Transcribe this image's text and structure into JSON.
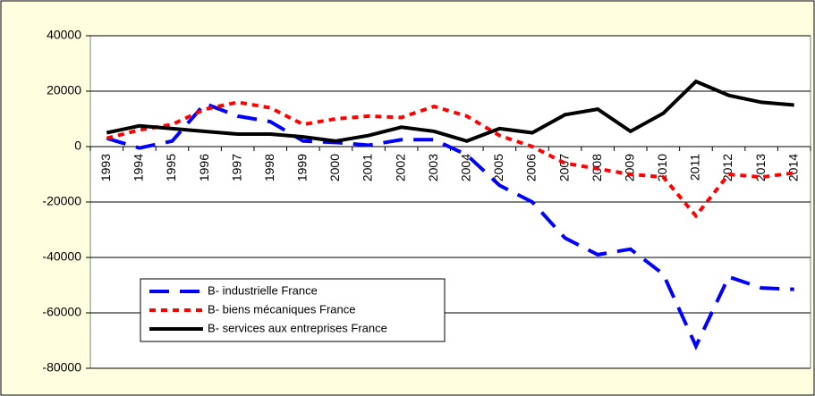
{
  "chart_data": {
    "type": "line",
    "categories": [
      "1993",
      "1994",
      "1995",
      "1996",
      "1997",
      "1998",
      "1999",
      "2000",
      "2001",
      "2002",
      "2003",
      "2004",
      "2005",
      "2006",
      "2007",
      "2008",
      "2009",
      "2010",
      "2011",
      "2012",
      "2013",
      "2014"
    ],
    "series": [
      {
        "name": "B- industrielle France",
        "color": "#0000ff",
        "style": "dashed",
        "values": [
          3000,
          -500,
          2000,
          15500,
          11000,
          9000,
          2000,
          1500,
          500,
          2500,
          2500,
          -3000,
          -14000,
          -20000,
          -33000,
          -39000,
          -37000,
          -46000,
          -72000,
          -47000,
          -51000,
          -51500
        ]
      },
      {
        "name": "B- biens mécaniques France",
        "color": "#ff0000",
        "style": "dotted",
        "values": [
          3000,
          6000,
          8000,
          13500,
          16000,
          14000,
          8000,
          10000,
          11000,
          10500,
          14500,
          11000,
          4000,
          0,
          -6000,
          -8000,
          -10000,
          -11000,
          -25000,
          -10000,
          -11000,
          -9500
        ]
      },
      {
        "name": "B- services aux entreprises France",
        "color": "#000000",
        "style": "solid",
        "values": [
          5000,
          7500,
          6500,
          5500,
          4500,
          4500,
          3500,
          2000,
          4000,
          7000,
          5500,
          2000,
          6500,
          5000,
          11500,
          13500,
          5500,
          12000,
          23500,
          18500,
          16000,
          15000
        ]
      }
    ],
    "ylim": [
      -80000,
      40000
    ],
    "yticks": [
      -80000,
      -60000,
      -40000,
      -20000,
      0,
      20000,
      40000
    ],
    "grid": true
  }
}
